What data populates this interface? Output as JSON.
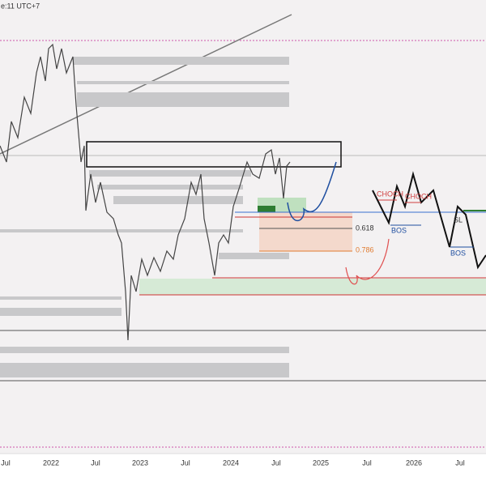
{
  "header": {
    "timezone": "e:11 UTC+7"
  },
  "x_axis": {
    "labels": [
      "Jul",
      "2022",
      "Jul",
      "2023",
      "Jul",
      "2024",
      "Jul",
      "2025",
      "Jul",
      "2026",
      "Jul"
    ]
  },
  "annotations": [
    {
      "label": "CHOCH"
    },
    {
      "label": "CHOCH"
    },
    {
      "label": "BOS"
    },
    {
      "label": "BOS"
    },
    {
      "label": "SL"
    },
    {
      "label": "0.618"
    },
    {
      "label": "0.786"
    }
  ]
}
